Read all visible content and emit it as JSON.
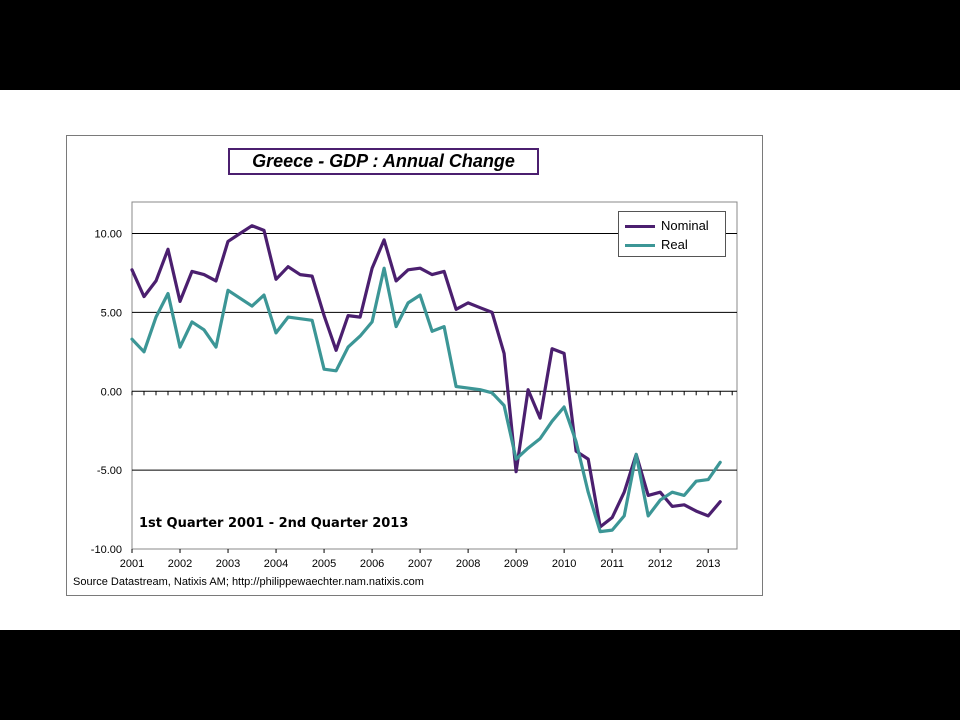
{
  "chart_data": {
    "type": "line",
    "title": "Greece - GDP : Annual Change",
    "subtitle": "1st Quarter 2001 - 2nd Quarter 2013",
    "source": "Source Datastream, Natixis AM; http://philippewaechter.nam.natixis.com",
    "xlabel": "",
    "ylabel": "",
    "xlim": [
      2001,
      2013.6
    ],
    "ylim": [
      -10,
      12
    ],
    "y_ticks": [
      "10.00",
      "5.00",
      "0.00",
      "-5.00",
      "-10.00"
    ],
    "x_ticks": [
      "2001",
      "2002",
      "2003",
      "2004",
      "2005",
      "2006",
      "2007",
      "2008",
      "2009",
      "2010",
      "2011",
      "2012",
      "2013"
    ],
    "grid": "horizontal",
    "legend": "top-right",
    "x": [
      2001.0,
      2001.25,
      2001.5,
      2001.75,
      2002.0,
      2002.25,
      2002.5,
      2002.75,
      2003.0,
      2003.25,
      2003.5,
      2003.75,
      2004.0,
      2004.25,
      2004.5,
      2004.75,
      2005.0,
      2005.25,
      2005.5,
      2005.75,
      2006.0,
      2006.25,
      2006.5,
      2006.75,
      2007.0,
      2007.25,
      2007.5,
      2007.75,
      2008.0,
      2008.25,
      2008.5,
      2008.75,
      2009.0,
      2009.25,
      2009.5,
      2009.75,
      2010.0,
      2010.25,
      2010.5,
      2010.75,
      2011.0,
      2011.25,
      2011.5,
      2011.75,
      2012.0,
      2012.25,
      2012.5,
      2012.75,
      2013.0,
      2013.25
    ],
    "series": [
      {
        "name": "Nominal",
        "color": "#4b1f6f",
        "values": [
          7.7,
          6.0,
          7.0,
          9.0,
          5.7,
          7.6,
          7.4,
          7.0,
          9.5,
          10.0,
          10.5,
          10.2,
          7.1,
          7.9,
          7.4,
          7.3,
          4.8,
          2.6,
          4.8,
          4.7,
          7.8,
          9.6,
          7.0,
          7.7,
          7.8,
          7.4,
          7.6,
          5.2,
          5.6,
          5.3,
          5.0,
          2.4,
          -5.1,
          0.1,
          -1.7,
          2.7,
          2.4,
          -3.8,
          -4.3,
          -8.6,
          -8.0,
          -6.4,
          -4.0,
          -6.6,
          -6.4,
          -7.3,
          -7.2,
          -7.6,
          -7.9,
          -7.0
        ]
      },
      {
        "name": "Real",
        "color": "#3c9696",
        "values": [
          3.3,
          2.5,
          4.7,
          6.2,
          2.8,
          4.4,
          3.9,
          2.8,
          6.4,
          5.9,
          5.4,
          6.1,
          3.7,
          4.7,
          4.6,
          4.5,
          1.4,
          1.3,
          2.8,
          3.5,
          4.4,
          7.8,
          4.1,
          5.6,
          6.1,
          3.8,
          4.1,
          0.3,
          0.2,
          0.1,
          -0.1,
          -0.9,
          -4.3,
          -3.6,
          -3.0,
          -1.9,
          -1.0,
          -3.2,
          -6.4,
          -8.9,
          -8.8,
          -7.9,
          -4.0,
          -7.9,
          -6.9,
          -6.4,
          -6.6,
          -5.7,
          -5.6,
          -4.5
        ]
      }
    ]
  }
}
